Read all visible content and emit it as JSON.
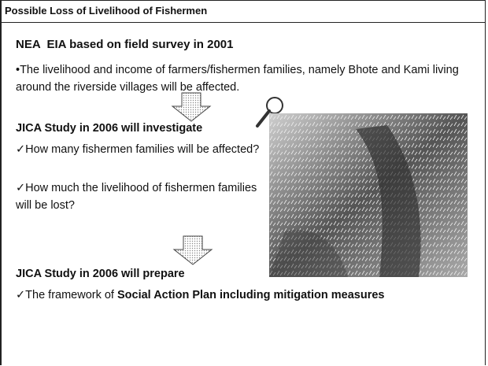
{
  "title": "Possible Loss of Livelihood of Fishermen",
  "sections": [
    {
      "heading": "NEA  EIA based on field survey in 2001",
      "items": [
        "•The livelihood and income of farmers/fishermen families, namely Bhote and Kami living around the riverside villages will be affected."
      ]
    },
    {
      "heading": "JICA Study in 2006 will investigate",
      "items": [
        "✓How many fishermen families will be affected?",
        "✓How much the livelihood of fishermen families will be lost?"
      ]
    },
    {
      "heading": "JICA Study in 2006 will prepare",
      "items": [
        {
          "text": "✓The framework of ",
          "emphasis": "Social Action Plan including mitigation measures"
        }
      ]
    }
  ]
}
